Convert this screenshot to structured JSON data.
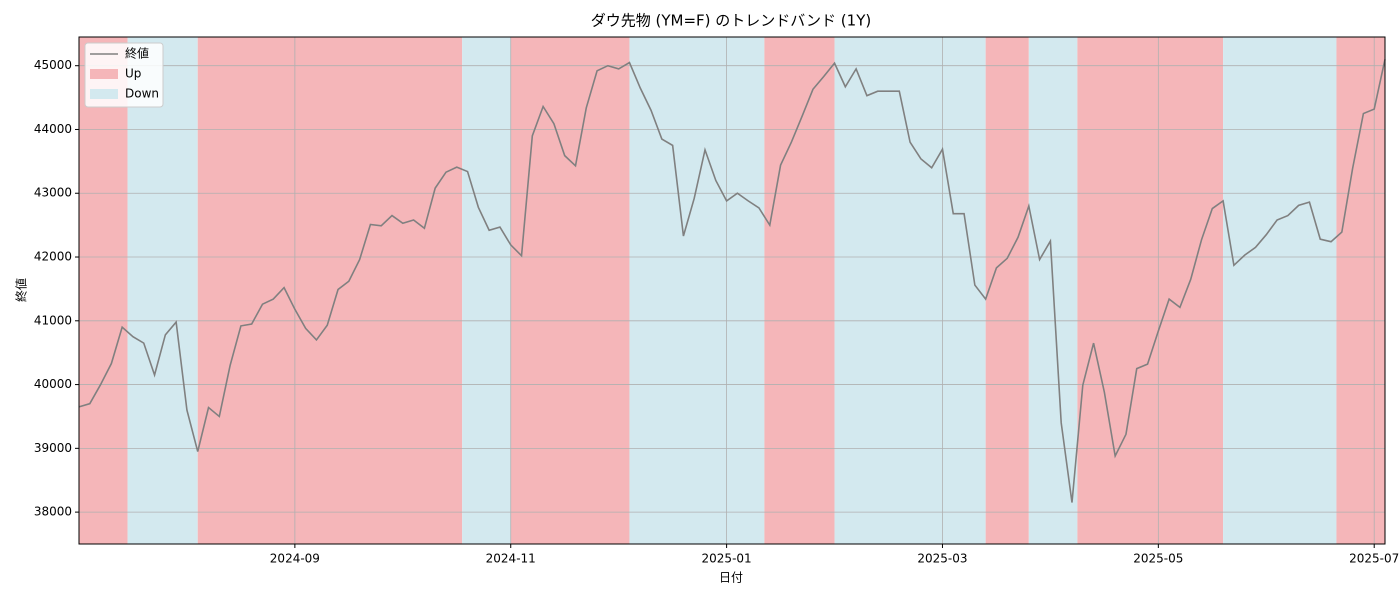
{
  "chart_data": {
    "type": "line",
    "title": "ダウ先物 (YM=F) のトレンドバンド (1Y)",
    "x_label": "日付",
    "y_label": "終値",
    "categories": [
      null,
      null,
      null,
      null,
      null,
      null,
      null,
      null,
      null,
      null,
      null,
      null,
      null,
      null,
      null,
      null,
      null,
      null,
      null,
      null,
      "2024-09",
      null,
      null,
      null,
      null,
      null,
      null,
      null,
      null,
      null,
      null,
      null,
      null,
      null,
      null,
      null,
      null,
      null,
      null,
      null,
      "2024-11",
      null,
      null,
      null,
      null,
      null,
      null,
      null,
      null,
      null,
      null,
      null,
      null,
      null,
      null,
      null,
      null,
      null,
      null,
      null,
      "2025-01",
      null,
      null,
      null,
      null,
      null,
      null,
      null,
      null,
      null,
      null,
      null,
      null,
      null,
      null,
      null,
      null,
      null,
      null,
      null,
      "2025-03",
      null,
      null,
      null,
      null,
      null,
      null,
      null,
      null,
      null,
      null,
      null,
      null,
      null,
      null,
      null,
      null,
      null,
      null,
      null,
      "2025-05",
      null,
      null,
      null,
      null,
      null,
      null,
      null,
      null,
      null,
      null,
      null,
      null,
      null,
      null,
      null,
      null,
      null,
      null,
      null,
      "2025-07",
      null
    ],
    "series": [
      {
        "name": "終値",
        "color": "#808080",
        "values": [
          39650,
          39700,
          40000,
          40330,
          40900,
          40750,
          40650,
          40150,
          40780,
          40980,
          39600,
          38950,
          39640,
          39500,
          40300,
          40920,
          40950,
          41260,
          41340,
          41520,
          41180,
          40880,
          40700,
          40930,
          41490,
          41620,
          41960,
          42510,
          42490,
          42650,
          42530,
          42580,
          42450,
          43080,
          43330,
          43410,
          43340,
          42780,
          42420,
          42470,
          42190,
          42020,
          43900,
          44360,
          44090,
          43590,
          43430,
          44340,
          44920,
          45000,
          44950,
          45050,
          44650,
          44300,
          43850,
          43750,
          42330,
          42920,
          43680,
          43200,
          42880,
          43000,
          42880,
          42770,
          42500,
          43440,
          43800,
          44210,
          44630,
          44830,
          45040,
          44670,
          44950,
          44530,
          44600,
          44600,
          44600,
          43800,
          43540,
          43400,
          43690,
          42680,
          42680,
          41560,
          41340,
          41830,
          41980,
          42310,
          42800,
          41960,
          42250,
          39400,
          38150,
          39990,
          40650,
          39880,
          38880,
          39220,
          40250,
          40320,
          40840,
          41340,
          41210,
          41650,
          42270,
          42760,
          42880,
          41870,
          42030,
          42150,
          42350,
          42580,
          42650,
          42810,
          42860,
          42280,
          42240,
          42390,
          43390,
          44250,
          44320,
          45100
        ]
      }
    ],
    "band_series": [
      {
        "name": "Up",
        "color": "#f5b6b9"
      },
      {
        "name": "Down",
        "color": "#d3e9ef"
      }
    ],
    "bands": [
      {
        "trend": "Up",
        "start": 0,
        "end": 4.5
      },
      {
        "trend": "Down",
        "start": 4.5,
        "end": 11
      },
      {
        "trend": "Up",
        "start": 11,
        "end": 35.5
      },
      {
        "trend": "Down",
        "start": 35.5,
        "end": 40
      },
      {
        "trend": "Up",
        "start": 40,
        "end": 51
      },
      {
        "trend": "Down",
        "start": 51,
        "end": 63.5
      },
      {
        "trend": "Up",
        "start": 63.5,
        "end": 70
      },
      {
        "trend": "Down",
        "start": 70,
        "end": 84
      },
      {
        "trend": "Up",
        "start": 84,
        "end": 88
      },
      {
        "trend": "Down",
        "start": 88,
        "end": 92.5
      },
      {
        "trend": "Up",
        "start": 92.5,
        "end": 106
      },
      {
        "trend": "Down",
        "start": 106,
        "end": 116.5
      },
      {
        "trend": "Up",
        "start": 116.5,
        "end": 121
      }
    ],
    "ylim": [
      37500,
      45450
    ],
    "yticks": [
      38000,
      39000,
      40000,
      41000,
      42000,
      43000,
      44000,
      45000
    ],
    "grid": true,
    "legend": "upper left"
  }
}
